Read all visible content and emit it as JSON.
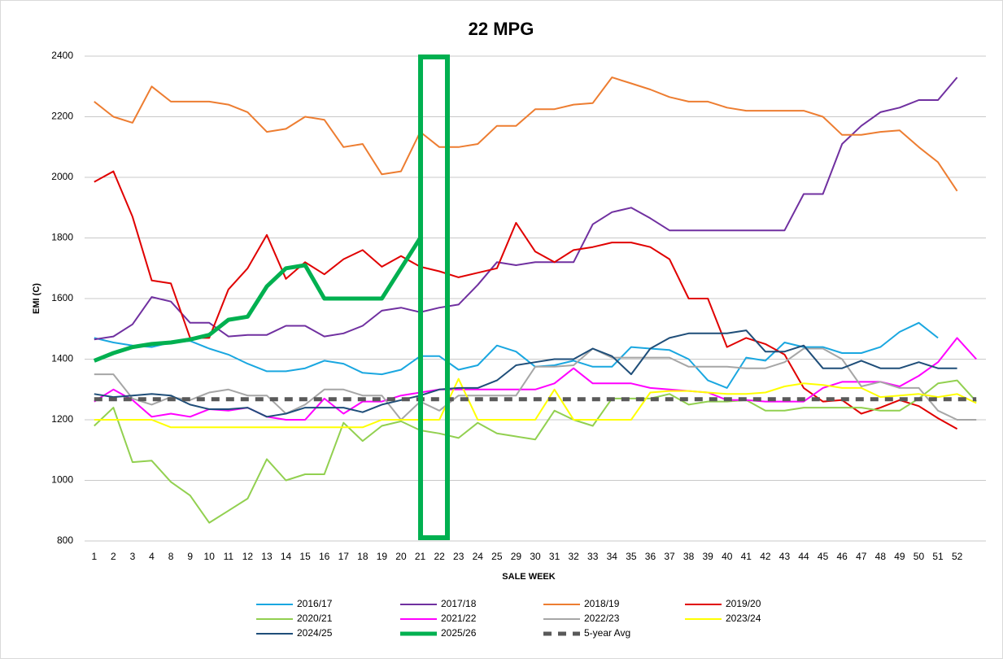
{
  "chart_data": {
    "type": "line",
    "title": "22 MPG",
    "x_label": "SALE WEEK",
    "y_label": "EMI (C)",
    "categories": [
      "1",
      "2",
      "3",
      "4",
      "8",
      "9",
      "10",
      "11",
      "12",
      "13",
      "14",
      "15",
      "16",
      "17",
      "18",
      "19",
      "20",
      "21",
      "22",
      "23",
      "24",
      "25",
      "29",
      "30",
      "31",
      "32",
      "33",
      "34",
      "35",
      "36",
      "37",
      "38",
      "39",
      "40",
      "41",
      "42",
      "43",
      "44",
      "45",
      "46",
      "47",
      "48",
      "49",
      "50",
      "51",
      "52",
      null
    ],
    "ylim": [
      800,
      2400
    ],
    "yticks": [
      800,
      1000,
      1200,
      1400,
      1600,
      1800,
      2000,
      2200,
      2400
    ],
    "grid": true,
    "legend": "bottom",
    "series": [
      {
        "name": "2016/17",
        "color": "#1aa7e0",
        "width": 2,
        "values": [
          1470,
          1455,
          1445,
          1440,
          1455,
          1460,
          1435,
          1415,
          1385,
          1360,
          1360,
          1370,
          1395,
          1385,
          1355,
          1350,
          1365,
          1410,
          1410,
          1365,
          1380,
          1445,
          1425,
          1375,
          1380,
          1395,
          1375,
          1375,
          1440,
          1435,
          1430,
          1400,
          1330,
          1305,
          1405,
          1395,
          1455,
          1440,
          1440,
          1420,
          1420,
          1440,
          1490,
          1520,
          1470,
          null,
          null
        ]
      },
      {
        "name": "2017/18",
        "color": "#7030a0",
        "width": 2,
        "values": [
          1465,
          1475,
          1515,
          1605,
          1590,
          1520,
          1520,
          1475,
          1480,
          1480,
          1510,
          1510,
          1475,
          1485,
          1510,
          1560,
          1570,
          1555,
          1570,
          1580,
          1645,
          1720,
          1710,
          1720,
          1720,
          1720,
          1845,
          1885,
          1900,
          1865,
          1825,
          1825,
          1825,
          1825,
          1825,
          1825,
          1825,
          1945,
          1945,
          2110,
          2170,
          2215,
          2230,
          2255,
          2255,
          2330,
          null
        ]
      },
      {
        "name": "2018/19",
        "color": "#ed7d31",
        "width": 2,
        "values": [
          2250,
          2200,
          2180,
          2300,
          2250,
          2250,
          2250,
          2240,
          2215,
          2150,
          2160,
          2200,
          2190,
          2100,
          2110,
          2010,
          2020,
          2150,
          2100,
          2100,
          2110,
          2170,
          2170,
          2225,
          2225,
          2240,
          2245,
          2330,
          2310,
          2290,
          2265,
          2250,
          2250,
          2230,
          2220,
          2220,
          2220,
          2220,
          2200,
          2140,
          2140,
          2150,
          2155,
          2100,
          2050,
          1955,
          null
        ]
      },
      {
        "name": "2019/20",
        "color": "#e00000",
        "width": 2,
        "values": [
          1985,
          2020,
          1870,
          1660,
          1650,
          1470,
          1470,
          1630,
          1700,
          1810,
          1665,
          1720,
          1680,
          1730,
          1760,
          1705,
          1740,
          1705,
          1690,
          1670,
          1685,
          1700,
          1850,
          1755,
          1720,
          1760,
          1770,
          1785,
          1785,
          1770,
          1730,
          1600,
          1600,
          1440,
          1470,
          1450,
          1415,
          1305,
          1260,
          1265,
          1220,
          1240,
          1265,
          1245,
          1205,
          1170,
          null
        ]
      },
      {
        "name": "2020/21",
        "color": "#92d050",
        "width": 2,
        "values": [
          1180,
          1240,
          1060,
          1065,
          995,
          950,
          860,
          900,
          940,
          1070,
          1000,
          1020,
          1020,
          1190,
          1130,
          1180,
          1195,
          1165,
          1155,
          1140,
          1190,
          1155,
          1145,
          1135,
          1230,
          1200,
          1180,
          1270,
          1270,
          1270,
          1285,
          1250,
          1260,
          1260,
          1265,
          1230,
          1230,
          1240,
          1240,
          1240,
          1240,
          1230,
          1230,
          1270,
          1320,
          1330,
          1260
        ]
      },
      {
        "name": "2021/22",
        "color": "#ff00ff",
        "width": 2,
        "values": [
          1260,
          1300,
          1265,
          1210,
          1220,
          1210,
          1235,
          1230,
          1240,
          1210,
          1200,
          1200,
          1270,
          1220,
          1260,
          1260,
          1280,
          1290,
          1300,
          1300,
          1300,
          1300,
          1300,
          1300,
          1320,
          1370,
          1320,
          1320,
          1320,
          1305,
          1300,
          1295,
          1290,
          1265,
          1265,
          1260,
          1260,
          1260,
          1305,
          1325,
          1325,
          1325,
          1310,
          1345,
          1390,
          1470,
          1400
        ]
      },
      {
        "name": "2022/23",
        "color": "#a6a6a6",
        "width": 2,
        "values": [
          1350,
          1350,
          1270,
          1250,
          1275,
          1265,
          1290,
          1300,
          1280,
          1280,
          1220,
          1250,
          1300,
          1300,
          1280,
          1280,
          1200,
          1260,
          1230,
          1280,
          1280,
          1280,
          1280,
          1375,
          1375,
          1380,
          1435,
          1405,
          1405,
          1405,
          1405,
          1375,
          1375,
          1375,
          1370,
          1370,
          1390,
          1435,
          1435,
          1400,
          1310,
          1325,
          1305,
          1305,
          1230,
          1200,
          1200
        ]
      },
      {
        "name": "2023/24",
        "color": "#ffff00",
        "width": 2,
        "values": [
          1200,
          1200,
          1200,
          1200,
          1175,
          1175,
          1175,
          1175,
          1175,
          1175,
          1175,
          1175,
          1175,
          1175,
          1175,
          1200,
          1200,
          1200,
          1200,
          1335,
          1200,
          1200,
          1200,
          1200,
          1300,
          1200,
          1200,
          1200,
          1200,
          1290,
          1295,
          1295,
          1290,
          1285,
          1285,
          1290,
          1310,
          1320,
          1315,
          1305,
          1305,
          1275,
          1280,
          1285,
          1275,
          1285,
          1255
        ]
      },
      {
        "name": "2024/25",
        "color": "#1f4e79",
        "width": 2,
        "values": [
          1285,
          1275,
          1280,
          1285,
          1280,
          1250,
          1235,
          1235,
          1240,
          1210,
          1220,
          1240,
          1240,
          1240,
          1225,
          1250,
          1265,
          1280,
          1300,
          1305,
          1305,
          1330,
          1380,
          1390,
          1400,
          1400,
          1435,
          1410,
          1350,
          1435,
          1470,
          1485,
          1485,
          1485,
          1495,
          1425,
          1425,
          1445,
          1370,
          1370,
          1395,
          1370,
          1370,
          1390,
          1370,
          1370,
          null
        ]
      },
      {
        "name": "2025/26",
        "color": "#00b050",
        "width": 5,
        "values": [
          1395,
          1420,
          1440,
          1450,
          1455,
          1465,
          1480,
          1530,
          1540,
          1640,
          1700,
          1710,
          1600,
          1600,
          1600,
          1600,
          1700,
          1800,
          null,
          null,
          null,
          null,
          null,
          null,
          null,
          null,
          null,
          null,
          null,
          null,
          null,
          null,
          null,
          null,
          null,
          null,
          null,
          null,
          null,
          null,
          null,
          null,
          null,
          null,
          null,
          null,
          null
        ]
      },
      {
        "name": "5-year Avg",
        "color": "#595959",
        "width": 5,
        "dashed": true,
        "values": [
          1268,
          1268,
          1268,
          1268,
          1268,
          1268,
          1268,
          1268,
          1268,
          1268,
          1268,
          1268,
          1268,
          1268,
          1268,
          1268,
          1268,
          1268,
          1268,
          1268,
          1268,
          1268,
          1268,
          1268,
          1268,
          1268,
          1268,
          1268,
          1268,
          1268,
          1268,
          1268,
          1268,
          1268,
          1268,
          1268,
          1268,
          1268,
          1268,
          1268,
          1268,
          1268,
          1268,
          1268,
          1268,
          1268,
          1268
        ]
      }
    ]
  }
}
